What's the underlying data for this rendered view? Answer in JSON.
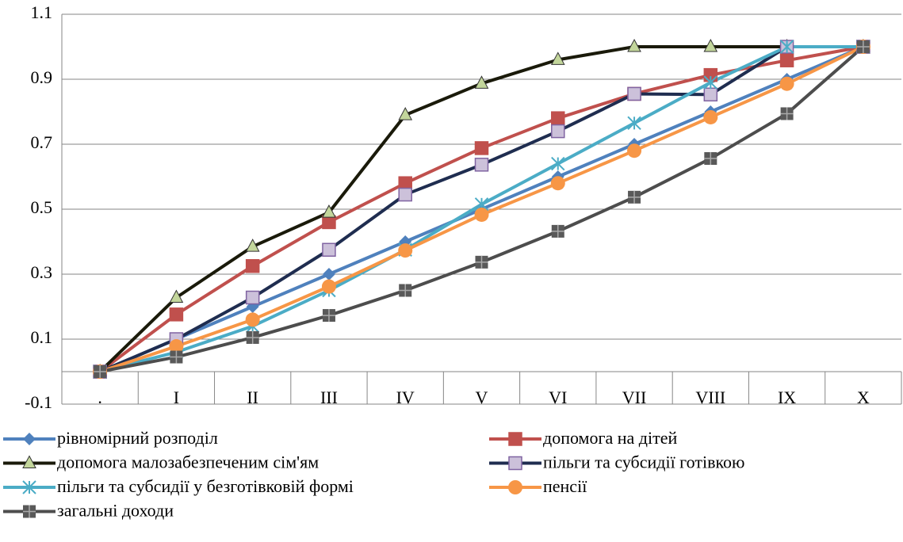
{
  "chart_data": {
    "type": "line",
    "categories": [
      ".",
      "I",
      "II",
      "III",
      "IV",
      "V",
      "VI",
      "VII",
      "VIII",
      "IX",
      "X"
    ],
    "ylim": [
      -0.1,
      1.1
    ],
    "yticks": [
      -0.1,
      0.1,
      0.3,
      0.5,
      0.7,
      0.9,
      1.1
    ],
    "grid": true,
    "legend": "bottom",
    "series": [
      {
        "name": "рівномірний розподіл",
        "color": "#4f81bd",
        "marker": "diamond",
        "marker_color": "#4f81bd",
        "values": [
          0,
          0.1,
          0.2,
          0.3,
          0.4,
          0.5,
          0.6,
          0.7,
          0.8,
          0.9,
          1.0
        ]
      },
      {
        "name": "допомога на дітей",
        "color": "#c0504d",
        "marker": "square",
        "marker_color": "#c0504d",
        "values": [
          0,
          0.176,
          0.325,
          0.46,
          0.58,
          0.688,
          0.78,
          0.855,
          0.913,
          0.958,
          1.0
        ]
      },
      {
        "name": "допомога малозабезпеченим сім'ям",
        "color": "#1a1a0a",
        "marker": "triangle",
        "marker_color": "#c3d69b",
        "values": [
          0,
          0.228,
          0.385,
          0.49,
          0.79,
          0.887,
          0.96,
          1.0,
          1.0,
          1.0,
          1.0
        ]
      },
      {
        "name": "пільги та субсидії готівкою",
        "color": "#1f2d50",
        "marker": "square",
        "marker_color": "#ccc1da",
        "values": [
          0,
          0.1,
          0.228,
          0.375,
          0.545,
          0.637,
          0.74,
          0.855,
          0.853,
          1.0,
          1.0
        ]
      },
      {
        "name": "пільги та субсидії у безготівковій формі",
        "color": "#4bacc6",
        "marker": "asterisk",
        "marker_color": "#4bacc6",
        "values": [
          0,
          0.06,
          0.14,
          0.25,
          0.375,
          0.515,
          0.64,
          0.765,
          0.89,
          1.0,
          1.0
        ]
      },
      {
        "name": "пенсії",
        "color": "#f79646",
        "marker": "circle",
        "marker_color": "#f79646",
        "values": [
          0,
          0.078,
          0.16,
          0.262,
          0.373,
          0.483,
          0.58,
          0.68,
          0.783,
          0.886,
          1.0
        ]
      },
      {
        "name": "загальні доходи",
        "color": "#4d4d4d",
        "marker": "plus-square",
        "marker_color": "#595959",
        "values": [
          0,
          0.045,
          0.105,
          0.173,
          0.25,
          0.337,
          0.432,
          0.537,
          0.656,
          0.794,
          1.0
        ]
      }
    ]
  }
}
